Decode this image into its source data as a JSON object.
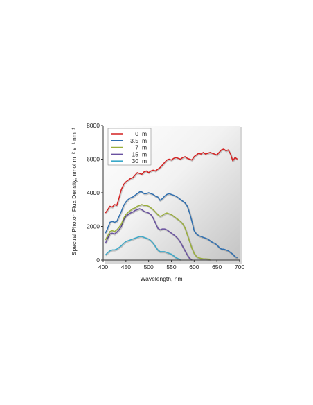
{
  "chart_data": {
    "type": "line",
    "title": "",
    "xlabel": "Wavelength, nm",
    "ylabel": "Spectral Photon Flux Density, nmol m⁻² s⁻¹ nm⁻¹",
    "xlim": [
      400,
      700
    ],
    "ylim": [
      0,
      8000
    ],
    "xticks": [
      "400",
      "450",
      "500",
      "550",
      "600",
      "650",
      "700"
    ],
    "yticks": [
      "0",
      "2000",
      "4000",
      "6000",
      "8000"
    ],
    "grid": false,
    "legend_position": "top-left",
    "legend_unit": "m",
    "series": [
      {
        "name": "0",
        "color": "#d42020",
        "x": [
          405,
          410,
          415,
          420,
          425,
          430,
          435,
          440,
          445,
          450,
          455,
          460,
          465,
          470,
          475,
          480,
          485,
          490,
          495,
          500,
          505,
          510,
          515,
          520,
          525,
          530,
          535,
          540,
          545,
          550,
          555,
          560,
          565,
          570,
          575,
          580,
          585,
          590,
          595,
          600,
          605,
          610,
          615,
          620,
          625,
          630,
          635,
          640,
          645,
          650,
          655,
          660,
          665,
          670,
          675,
          680,
          685,
          690,
          695
        ],
        "y": [
          2800,
          3000,
          3200,
          3150,
          3300,
          3250,
          3700,
          4200,
          4500,
          4650,
          4750,
          4850,
          4900,
          5050,
          5200,
          5150,
          5100,
          5250,
          5300,
          5200,
          5300,
          5350,
          5300,
          5400,
          5500,
          5650,
          5800,
          5950,
          6000,
          5950,
          6050,
          6100,
          6050,
          6000,
          6100,
          6150,
          6050,
          6000,
          5950,
          6150,
          6250,
          6350,
          6300,
          6400,
          6300,
          6350,
          6400,
          6350,
          6300,
          6250,
          6400,
          6550,
          6600,
          6500,
          6550,
          6300,
          5900,
          6100,
          6000
        ]
      },
      {
        "name": "3.5",
        "color": "#2f6fb0",
        "x": [
          405,
          410,
          415,
          420,
          425,
          430,
          435,
          440,
          445,
          450,
          455,
          460,
          465,
          470,
          475,
          480,
          485,
          490,
          495,
          500,
          505,
          510,
          515,
          520,
          525,
          530,
          535,
          540,
          545,
          550,
          555,
          560,
          565,
          570,
          575,
          580,
          585,
          590,
          595,
          600,
          605,
          610,
          615,
          620,
          625,
          630,
          635,
          640,
          645,
          650,
          655,
          660,
          665,
          670,
          675,
          680,
          685,
          690,
          695
        ],
        "y": [
          1600,
          1900,
          2250,
          2300,
          2250,
          2300,
          2600,
          2900,
          3250,
          3450,
          3600,
          3700,
          3750,
          3850,
          3950,
          4050,
          4050,
          3950,
          3950,
          4000,
          3950,
          3900,
          3800,
          3750,
          3550,
          3650,
          3800,
          3900,
          3950,
          3900,
          3850,
          3800,
          3700,
          3600,
          3500,
          3400,
          3200,
          2800,
          2300,
          1750,
          1550,
          1450,
          1400,
          1350,
          1300,
          1250,
          1150,
          1050,
          1000,
          900,
          750,
          650,
          650,
          600,
          550,
          450,
          350,
          200,
          150
        ]
      },
      {
        "name": "7",
        "color": "#9aaf3a",
        "x": [
          405,
          410,
          415,
          420,
          425,
          430,
          435,
          440,
          445,
          450,
          455,
          460,
          465,
          470,
          475,
          480,
          485,
          490,
          495,
          500,
          505,
          510,
          515,
          520,
          525,
          530,
          535,
          540,
          545,
          550,
          555,
          560,
          565,
          570,
          575,
          580,
          585,
          590,
          595,
          600,
          605,
          610,
          615,
          620,
          625,
          630,
          635
        ],
        "y": [
          1200,
          1450,
          1700,
          1750,
          1700,
          1800,
          1950,
          2150,
          2500,
          2700,
          2850,
          2950,
          3050,
          3100,
          3200,
          3250,
          3300,
          3250,
          3250,
          3200,
          3100,
          3000,
          2850,
          2700,
          2600,
          2650,
          2750,
          2800,
          2750,
          2700,
          2600,
          2500,
          2400,
          2300,
          2150,
          1900,
          1500,
          1100,
          700,
          400,
          220,
          140,
          100,
          80,
          70,
          60,
          50
        ]
      },
      {
        "name": "15",
        "color": "#6a52a0",
        "x": [
          405,
          410,
          415,
          420,
          425,
          430,
          435,
          440,
          445,
          450,
          455,
          460,
          465,
          470,
          475,
          480,
          485,
          490,
          495,
          500,
          505,
          510,
          515,
          520,
          525,
          530,
          535,
          540,
          545,
          550,
          555,
          560,
          565,
          570,
          575,
          580,
          585,
          590,
          595
        ],
        "y": [
          1000,
          1300,
          1550,
          1600,
          1550,
          1650,
          1800,
          2000,
          2400,
          2600,
          2700,
          2800,
          2850,
          2950,
          3000,
          3050,
          3000,
          2900,
          2850,
          2800,
          2700,
          2500,
          2200,
          1900,
          1800,
          1850,
          1850,
          1800,
          1700,
          1600,
          1500,
          1400,
          1250,
          1050,
          800,
          550,
          300,
          100,
          30
        ]
      },
      {
        "name": "30",
        "color": "#3aa8c8",
        "x": [
          405,
          410,
          415,
          420,
          425,
          430,
          435,
          440,
          445,
          450,
          455,
          460,
          465,
          470,
          475,
          480,
          485,
          490,
          495,
          500,
          505,
          510,
          515,
          520,
          525,
          530,
          535,
          540,
          545,
          550,
          555,
          560,
          565,
          570
        ],
        "y": [
          300,
          450,
          550,
          600,
          600,
          650,
          750,
          850,
          1000,
          1100,
          1150,
          1200,
          1250,
          1300,
          1350,
          1400,
          1400,
          1350,
          1300,
          1250,
          1150,
          1000,
          800,
          600,
          500,
          500,
          500,
          450,
          400,
          350,
          250,
          150,
          80,
          40
        ]
      }
    ]
  }
}
